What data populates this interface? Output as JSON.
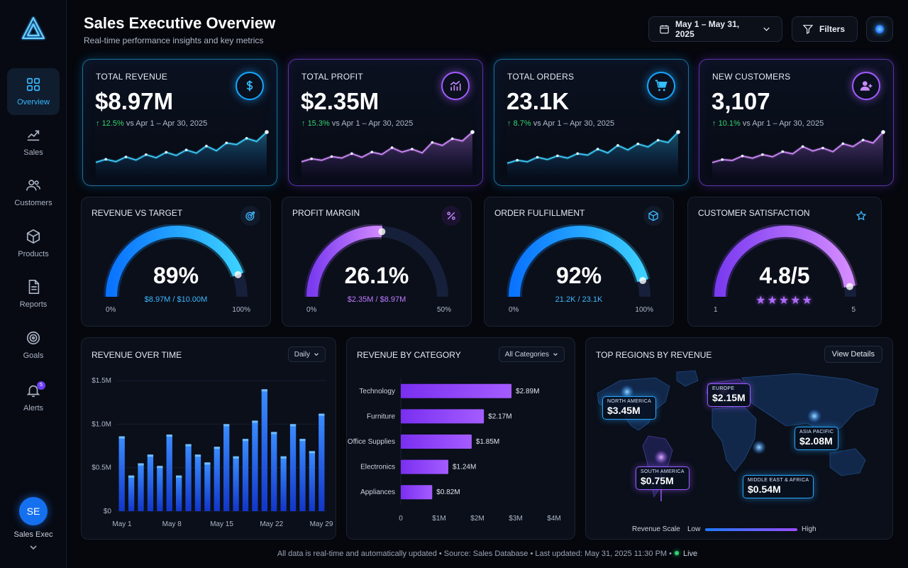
{
  "sidebar": {
    "items": [
      {
        "label": "Overview",
        "icon": "grid-icon",
        "active": true
      },
      {
        "label": "Sales",
        "icon": "trend-icon"
      },
      {
        "label": "Customers",
        "icon": "users-icon"
      },
      {
        "label": "Products",
        "icon": "box-icon"
      },
      {
        "label": "Reports",
        "icon": "document-icon"
      },
      {
        "label": "Goals",
        "icon": "target-icon"
      },
      {
        "label": "Alerts",
        "icon": "bell-icon",
        "badge": "5"
      }
    ],
    "user": {
      "initials": "SE",
      "name": "Sales Exec"
    }
  },
  "header": {
    "title": "Sales Executive Overview",
    "subtitle": "Real-time performance insights and key metrics",
    "date_range": "May 1 – May 31, 2025",
    "filters_label": "Filters"
  },
  "kpis": [
    {
      "label": "TOTAL REVENUE",
      "value": "$8.97M",
      "delta": "12.5%",
      "compare": "vs Apr 1 – Apr 30, 2025",
      "icon": "dollar-icon",
      "theme": "blue",
      "trend": [
        3,
        7,
        4,
        10,
        6,
        13,
        9,
        16,
        12,
        19,
        15,
        24,
        18,
        28,
        26,
        34,
        30,
        42
      ]
    },
    {
      "label": "TOTAL PROFIT",
      "value": "$2.35M",
      "delta": "15.3%",
      "compare": "vs Apr 1 – Apr 30, 2025",
      "icon": "chart-up-icon",
      "theme": "purple",
      "trend": [
        4,
        8,
        6,
        11,
        9,
        15,
        10,
        17,
        14,
        23,
        17,
        21,
        16,
        30,
        26,
        35,
        32,
        44
      ]
    },
    {
      "label": "TOTAL ORDERS",
      "value": "23.1K",
      "delta": "8.7%",
      "compare": "vs Apr 1 – Apr 30, 2025",
      "icon": "cart-icon",
      "theme": "blue",
      "trend": [
        2,
        6,
        4,
        10,
        7,
        12,
        9,
        15,
        13,
        21,
        16,
        26,
        20,
        28,
        24,
        33,
        30,
        44
      ]
    },
    {
      "label": "NEW CUSTOMERS",
      "value": "3,107",
      "delta": "10.1%",
      "compare": "vs Apr 1 – Apr 30, 2025",
      "icon": "add-user-icon",
      "theme": "purple",
      "trend": [
        3,
        7,
        6,
        12,
        9,
        14,
        11,
        18,
        15,
        25,
        19,
        23,
        18,
        29,
        25,
        34,
        30,
        45
      ]
    }
  ],
  "gauges": [
    {
      "title": "REVENUE VS TARGET",
      "value": "89%",
      "sub": "$8.97M / $10.00M",
      "min": "0%",
      "max": "100%",
      "fraction": 0.89,
      "theme": "blue",
      "icon": "target-icon"
    },
    {
      "title": "PROFIT MARGIN",
      "value": "26.1%",
      "sub": "$2.35M / $8.97M",
      "min": "0%",
      "max": "50%",
      "fraction": 0.522,
      "theme": "purple",
      "icon": "percent-icon"
    },
    {
      "title": "ORDER FULFILLMENT",
      "value": "92%",
      "sub": "21.2K / 23.1K",
      "min": "0%",
      "max": "100%",
      "fraction": 0.92,
      "theme": "blue",
      "icon": "cube-icon"
    },
    {
      "title": "CUSTOMER SATISFACTION",
      "value": "4.8/5",
      "stars": "★★★★★",
      "min": "1",
      "max": "5",
      "fraction": 0.95,
      "theme": "purple",
      "icon": "star-icon"
    }
  ],
  "revenue_over_time": {
    "title": "REVENUE OVER TIME",
    "granularity": "Daily",
    "chart_data": {
      "type": "bar",
      "y_tick_labels": [
        "$0",
        "$0.5M",
        "$1.0M",
        "$1.5M"
      ],
      "x_tick_labels": [
        "May 1",
        "May 8",
        "May 15",
        "May 22",
        "May 29"
      ],
      "ylim": [
        0,
        1.5
      ],
      "values": [
        0.86,
        0.41,
        0.55,
        0.65,
        0.52,
        0.88,
        0.41,
        0.77,
        0.65,
        0.56,
        0.74,
        1.0,
        0.63,
        0.83,
        1.04,
        1.4,
        0.91,
        0.63,
        1.0,
        0.83,
        0.69,
        1.12
      ]
    }
  },
  "revenue_by_category": {
    "title": "REVENUE BY CATEGORY",
    "filter": "All Categories",
    "chart_data": {
      "type": "bar",
      "categories": [
        "Technology",
        "Furniture",
        "Office Supplies",
        "Electronics",
        "Appliances"
      ],
      "values": [
        2.89,
        2.17,
        1.85,
        1.24,
        0.82
      ],
      "value_labels": [
        "$2.89M",
        "$2.17M",
        "$1.85M",
        "$1.24M",
        "$0.82M"
      ],
      "x_tick_labels": [
        "0",
        "$1M",
        "$2M",
        "$3M",
        "$4M"
      ],
      "xlim": [
        0,
        4
      ]
    }
  },
  "top_regions": {
    "title": "TOP REGIONS BY REVENUE",
    "view_label": "View Details",
    "regions": [
      {
        "name": "NORTH AMERICA",
        "value": "$3.45M",
        "theme": "blue"
      },
      {
        "name": "EUROPE",
        "value": "$2.15M",
        "theme": "purple"
      },
      {
        "name": "ASIA PACIFIC",
        "value": "$2.08M",
        "theme": "blue"
      },
      {
        "name": "SOUTH AMERICA",
        "value": "$0.75M",
        "theme": "purple"
      },
      {
        "name": "MIDDLE EAST & AFRICA",
        "value": "$0.54M",
        "theme": "blue"
      }
    ],
    "legend": {
      "title": "Revenue Scale",
      "low": "Low",
      "high": "High"
    }
  },
  "footer": {
    "text": "All data is real-time and automatically updated • Source: Sales Database • Last updated: May 31, 2025 11:30 PM •",
    "live": "Live"
  },
  "colors": {
    "blue": "#1aa8ff",
    "purple": "#a259ff",
    "green": "#36d36e",
    "background": "#05070d"
  }
}
